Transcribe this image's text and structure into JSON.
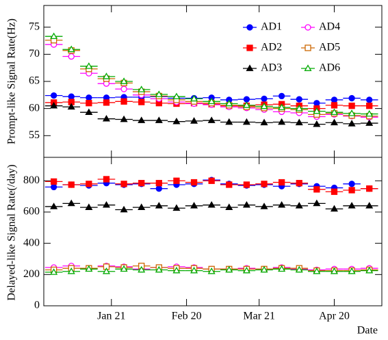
{
  "chart_data": [
    {
      "type": "scatter",
      "y_label": "Prompt-like Signal Rate(Hz)",
      "x": [
        -2,
        5,
        12,
        19,
        26,
        33,
        40,
        47,
        54,
        61,
        68,
        75,
        82,
        89,
        96,
        103,
        110,
        117,
        124
      ],
      "xlim": [
        -6,
        129
      ],
      "ylim": [
        51,
        79
      ],
      "yticks": [
        55,
        60,
        65,
        70,
        75
      ],
      "legend": "top-right",
      "series": [
        {
          "name": "AD1",
          "color": "#0000ff",
          "marker": "circle",
          "filled": true,
          "values": [
            62.4,
            62.2,
            62.0,
            62.0,
            62.1,
            62.1,
            62.2,
            61.9,
            61.9,
            62.0,
            61.6,
            61.7,
            61.8,
            62.3,
            61.7,
            61.0,
            61.6,
            61.9,
            61.6
          ]
        },
        {
          "name": "AD2",
          "color": "#ff0000",
          "marker": "square",
          "filled": true,
          "values": [
            61.1,
            61.2,
            61.0,
            61.1,
            61.3,
            61.2,
            61.0,
            60.9,
            61.0,
            60.8,
            60.5,
            60.5,
            60.7,
            60.8,
            60.5,
            60.0,
            60.6,
            60.5,
            60.5
          ]
        },
        {
          "name": "AD3",
          "color": "#000000",
          "marker": "triangle",
          "filled": true,
          "values": [
            60.5,
            60.3,
            59.3,
            58.1,
            58.0,
            57.8,
            57.8,
            57.6,
            57.7,
            57.8,
            57.5,
            57.5,
            57.4,
            57.5,
            57.4,
            57.1,
            57.4,
            57.2,
            57.3
          ]
        },
        {
          "name": "AD4",
          "color": "#ff00ff",
          "marker": "circle",
          "filled": false,
          "values": [
            71.8,
            69.6,
            66.5,
            64.6,
            63.6,
            62.5,
            61.8,
            61.2,
            60.9,
            60.7,
            60.3,
            60.1,
            59.8,
            59.4,
            59.2,
            58.5,
            58.9,
            58.6,
            58.4
          ]
        },
        {
          "name": "AD5",
          "color": "#cc6600",
          "marker": "square",
          "filled": false,
          "values": [
            72.6,
            70.7,
            67.3,
            65.5,
            64.7,
            63.1,
            62.3,
            61.6,
            61.3,
            61.0,
            60.6,
            60.3,
            60.1,
            60.0,
            59.8,
            58.9,
            59.1,
            58.7,
            58.6
          ]
        },
        {
          "name": "AD6",
          "color": "#00aa00",
          "marker": "triangle",
          "filled": false,
          "values": [
            73.3,
            70.9,
            67.8,
            65.9,
            65.0,
            63.5,
            62.6,
            62.2,
            61.8,
            61.3,
            60.9,
            60.6,
            60.4,
            60.2,
            60.0,
            59.5,
            59.3,
            59.1,
            59.0
          ]
        }
      ]
    },
    {
      "type": "scatter",
      "y_label": "Delayed-like Signal Rate(/day)",
      "x_label": "Date",
      "x": [
        -2,
        5,
        12,
        19,
        26,
        33,
        40,
        47,
        54,
        61,
        68,
        75,
        82,
        89,
        96,
        103,
        110,
        117,
        124
      ],
      "xlim": [
        -6,
        129
      ],
      "xticks": [
        {
          "value": 21,
          "label": "Jan 21"
        },
        {
          "value": 51,
          "label": "Feb 20"
        },
        {
          "value": 80,
          "label": "Mar 21"
        },
        {
          "value": 110,
          "label": "Apr 20"
        }
      ],
      "ylim": [
        0,
        950
      ],
      "yticks": [
        0,
        200,
        400,
        600,
        800
      ],
      "series": [
        {
          "color": "#0000ff",
          "marker": "circle",
          "filled": true,
          "values": [
            760,
            775,
            770,
            785,
            775,
            780,
            750,
            775,
            780,
            805,
            780,
            770,
            775,
            765,
            780,
            765,
            755,
            780,
            750
          ]
        },
        {
          "color": "#ff0000",
          "marker": "square",
          "filled": true,
          "values": [
            795,
            775,
            780,
            810,
            780,
            785,
            785,
            800,
            790,
            800,
            775,
            775,
            780,
            790,
            785,
            745,
            730,
            740,
            750
          ]
        },
        {
          "color": "#000000",
          "marker": "triangle",
          "filled": true,
          "values": [
            635,
            655,
            630,
            645,
            615,
            630,
            640,
            625,
            640,
            645,
            630,
            645,
            635,
            645,
            640,
            655,
            620,
            640,
            640
          ]
        },
        {
          "color": "#ff00ff",
          "marker": "circle",
          "filled": false,
          "values": [
            245,
            255,
            240,
            255,
            250,
            235,
            245,
            250,
            245,
            235,
            235,
            240,
            235,
            245,
            235,
            230,
            235,
            235,
            240
          ]
        },
        {
          "color": "#cc6600",
          "marker": "square",
          "filled": false,
          "values": [
            230,
            240,
            240,
            250,
            245,
            255,
            245,
            240,
            240,
            235,
            235,
            235,
            235,
            240,
            240,
            225,
            225,
            225,
            230
          ]
        },
        {
          "color": "#00aa00",
          "marker": "triangle",
          "filled": false,
          "values": [
            215,
            220,
            235,
            220,
            235,
            230,
            230,
            225,
            225,
            220,
            230,
            225,
            230,
            235,
            230,
            220,
            220,
            220,
            225
          ]
        }
      ]
    }
  ]
}
